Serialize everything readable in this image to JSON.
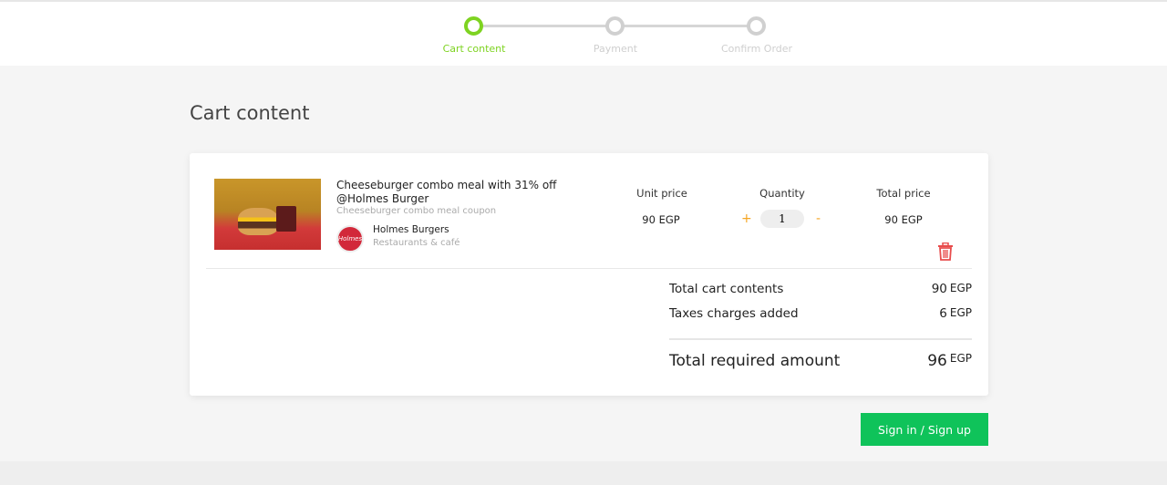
{
  "stepper": {
    "steps": [
      {
        "label": "Cart content",
        "active": true
      },
      {
        "label": "Payment",
        "active": false
      },
      {
        "label": "Confirm Order",
        "active": false
      }
    ],
    "active_color": "#7ed321"
  },
  "page_title": "Cart content",
  "item": {
    "title": "Cheeseburger combo meal with 31% off @Holmes Burger",
    "subtitle": "Cheeseburger combo meal coupon",
    "merchant": "Holmes Burgers",
    "merchant_logo_text": "Holmes",
    "category": "Restaurants & café",
    "unit_price_label": "Unit price",
    "quantity_label": "Quantity",
    "total_price_label": "Total price",
    "unit_price": "90 EGP",
    "quantity": "1",
    "total_price": "90 EGP",
    "plus": "+",
    "minus": "-"
  },
  "summary": {
    "total_cart_label": "Total cart contents",
    "total_cart": "90",
    "taxes_label": "Taxes charges added",
    "taxes": "6",
    "required_label": "Total required amount",
    "required": "96",
    "currency": "EGP"
  },
  "signin_label": "Sign in / Sign up",
  "colors": {
    "accent": "#0fc35a",
    "orange": "#f5a623",
    "delete": "#e84c4c"
  }
}
